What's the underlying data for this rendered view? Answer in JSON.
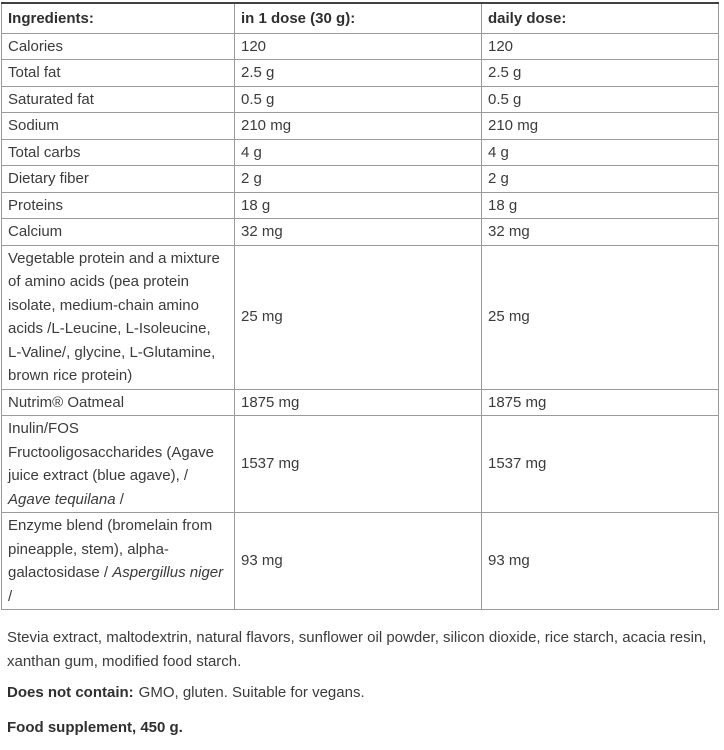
{
  "table": {
    "columns": [
      {
        "label": "Ingredients:"
      },
      {
        "label": "in 1 dose (30 g):"
      },
      {
        "label": "daily dose:"
      }
    ],
    "rows": [
      {
        "name": [
          {
            "text": "Calories"
          }
        ],
        "per_dose": "120",
        "daily": "120"
      },
      {
        "name": [
          {
            "text": "Total fat"
          }
        ],
        "per_dose": "2.5 g",
        "daily": "2.5 g"
      },
      {
        "name": [
          {
            "text": "Saturated fat"
          }
        ],
        "per_dose": "0.5 g",
        "daily": "0.5 g"
      },
      {
        "name": [
          {
            "text": "Sodium"
          }
        ],
        "per_dose": "210 mg",
        "daily": "210 mg"
      },
      {
        "name": [
          {
            "text": "Total carbs"
          }
        ],
        "per_dose": "4 g",
        "daily": "4 g"
      },
      {
        "name": [
          {
            "text": "Dietary fiber"
          }
        ],
        "per_dose": "2 g",
        "daily": "2 g"
      },
      {
        "name": [
          {
            "text": "Proteins"
          }
        ],
        "per_dose": "18 g",
        "daily": "18 g"
      },
      {
        "name": [
          {
            "text": "Calcium"
          }
        ],
        "per_dose": "32 mg",
        "daily": "32 mg"
      },
      {
        "name": [
          {
            "text": "Vegetable protein and a mixture of amino acids (pea protein isolate, medium-chain amino acids /L-Leucine, L-Isoleucine, L-Valine/, glycine, L-Glutamine, brown rice protein)"
          }
        ],
        "per_dose": "25 mg",
        "daily": "25 mg"
      },
      {
        "name": [
          {
            "text": "Nutrim® Oatmeal"
          }
        ],
        "per_dose": "1875 mg",
        "daily": "1875 mg"
      },
      {
        "name": [
          {
            "text": "Inulin/FOS Fructooligosaccharides (Agave juice extract (blue agave), / "
          },
          {
            "text": "Agave tequilana",
            "italic": true
          },
          {
            "text": " /"
          }
        ],
        "per_dose": "1537 mg",
        "daily": "1537 mg"
      },
      {
        "name": [
          {
            "text": "Enzyme blend (bromelain from pineapple, stem), alpha-galactosidase / "
          },
          {
            "text": "Aspergillus niger",
            "italic": true
          },
          {
            "text": " /"
          }
        ],
        "per_dose": "93 mg",
        "daily": "93 mg"
      }
    ]
  },
  "notes": {
    "other_ingredients": "Stevia extract, maltodextrin, natural flavors, sunflower oil powder, silicon dioxide, rice starch, acacia resin, xanthan gum, modified food starch.",
    "does_not_contain_label": "Does not contain:",
    "does_not_contain_value": "GMO, gluten. Suitable for vegans.",
    "food_supplement": "Food supplement, 450 g."
  },
  "colors": {
    "text": "#3b3b3b",
    "bold_text": "#2f2f2f",
    "table_border": "#9a9a9a",
    "table_top_border": "#414141",
    "background": "#ffffff"
  }
}
